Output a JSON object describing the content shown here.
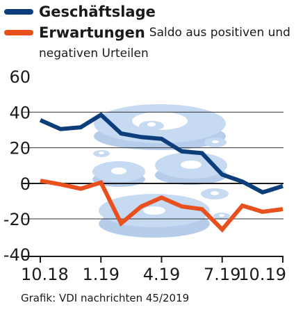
{
  "chart_data": {
    "type": "line",
    "note_line1": "Saldo aus positiven und",
    "note_line2": "negativen Urteilen",
    "source": "Grafik: VDI nachrichten 45/2019",
    "ylim": [
      -40,
      60
    ],
    "y_ticks": [
      60,
      40,
      20,
      0,
      -20,
      -40
    ],
    "x_ticks": [
      "10.18",
      "1.19",
      "4.19",
      "7.19",
      "10.19"
    ],
    "x_tick_index": [
      0,
      3,
      6,
      9,
      12
    ],
    "grid": true,
    "zero_line": true,
    "legend_position": "top-left",
    "series": [
      {
        "name": "Geschäftslage",
        "color": "#0d3e7c",
        "values": [
          35.5,
          30.5,
          31.5,
          38.5,
          28,
          26,
          25,
          18,
          17,
          5,
          1,
          -5,
          -1.5
        ]
      },
      {
        "name": "Erwartungen",
        "color": "#e8501e",
        "values": [
          1.5,
          -0.5,
          -3,
          0.5,
          -22.5,
          -13,
          -8,
          -13,
          -14.5,
          -26,
          -12.5,
          -16,
          -14.5
        ]
      }
    ]
  }
}
